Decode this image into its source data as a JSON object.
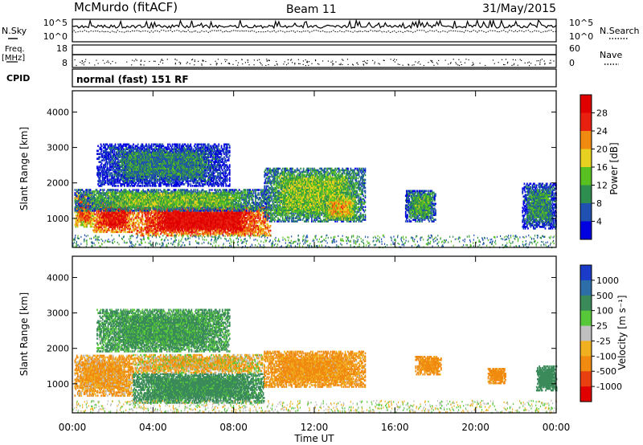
{
  "header": {
    "station": "McMurdo (fitACF)",
    "beam": "Beam 11",
    "date": "31/May/2015"
  },
  "top_panels": {
    "nsky_label": "N.Sky",
    "nsearch_label": "N.Search",
    "freq_label_line1": "Freq.",
    "freq_label_line2": "[MHz]",
    "nave_label": "Nave",
    "cpid_label": "CPID",
    "cpid_text": "normal (fast) 151 RF",
    "noise_left_ticks": [
      "10^5",
      "10^0"
    ],
    "noise_right_ticks": [
      "10^5",
      "10^0"
    ],
    "freq_ticks": [
      "18",
      "8"
    ],
    "nave_ticks": [
      "60",
      "0"
    ]
  },
  "chart_data": [
    {
      "type": "heatmap",
      "name": "power",
      "xlabel": "Time UT",
      "ylabel": "Slant Range [km]",
      "xlim": [
        0,
        24
      ],
      "ylim": [
        180,
        4600
      ],
      "yticks": [
        1000,
        2000,
        3000,
        4000
      ],
      "ytick_labels": [
        "1000",
        "2000",
        "3000",
        "4000"
      ],
      "colorbar": {
        "label": "Power [dB]",
        "tick_labels": [
          "4",
          "8",
          "12",
          "16",
          "20",
          "24",
          "28"
        ],
        "colors": [
          "#0000e0",
          "#2050b0",
          "#2e8e50",
          "#58c020",
          "#e8d020",
          "#f08a10",
          "#e82010",
          "#e00000"
        ]
      },
      "echo_regions": [
        {
          "t_start": 0.1,
          "t_end": 1.0,
          "r_start": 750,
          "r_end": 1700,
          "power_db": 24
        },
        {
          "t_start": 1.0,
          "t_end": 3.0,
          "r_start": 600,
          "r_end": 1500,
          "power_db": 28
        },
        {
          "t_start": 3.0,
          "t_end": 9.8,
          "r_start": 500,
          "r_end": 1350,
          "power_db": 29
        },
        {
          "t_start": 0.1,
          "t_end": 9.8,
          "r_start": 1200,
          "r_end": 1800,
          "power_db": 14
        },
        {
          "t_start": 1.2,
          "t_end": 7.8,
          "r_start": 1900,
          "r_end": 3100,
          "power_db": 9
        },
        {
          "t_start": 9.5,
          "t_end": 14.5,
          "r_start": 900,
          "r_end": 2400,
          "power_db": 15
        },
        {
          "t_start": 12.5,
          "t_end": 14.0,
          "r_start": 950,
          "r_end": 1600,
          "power_db": 20
        },
        {
          "t_start": 16.5,
          "t_end": 18.0,
          "r_start": 900,
          "r_end": 1800,
          "power_db": 12
        },
        {
          "t_start": 22.3,
          "t_end": 24.0,
          "r_start": 700,
          "r_end": 2000,
          "power_db": 10
        }
      ]
    },
    {
      "type": "heatmap",
      "name": "velocity",
      "xlabel": "Time UT",
      "ylabel": "Slant Range [km]",
      "xlim": [
        0,
        24
      ],
      "ylim": [
        180,
        4600
      ],
      "xticks": [
        0,
        4,
        8,
        12,
        16,
        20,
        24
      ],
      "xtick_labels": [
        "00:00",
        "04:00",
        "08:00",
        "12:00",
        "16:00",
        "20:00",
        "00:00"
      ],
      "yticks": [
        1000,
        2000,
        3000,
        4000
      ],
      "ytick_labels": [
        "1000",
        "2000",
        "3000",
        "4000"
      ],
      "colorbar": {
        "label": "Velocity [m s⁻¹]",
        "tick_labels": [
          "1000",
          "500",
          "100",
          "25",
          "-25",
          "-100",
          "-500",
          "-1000"
        ],
        "colors": [
          "#1a3cc8",
          "#2e6ea8",
          "#3a8a5a",
          "#56c83a",
          "#c0c0c0",
          "#f0b020",
          "#f08a10",
          "#e84010",
          "#e00000"
        ]
      },
      "echo_regions": [
        {
          "t_start": 0.1,
          "t_end": 3.0,
          "r_start": 650,
          "r_end": 1800,
          "velocity": -120
        },
        {
          "t_start": 3.0,
          "t_end": 9.5,
          "r_start": 450,
          "r_end": 1300,
          "velocity": 200
        },
        {
          "t_start": 3.0,
          "t_end": 9.5,
          "r_start": 1300,
          "r_end": 1800,
          "velocity": -60
        },
        {
          "t_start": 1.2,
          "t_end": 7.8,
          "r_start": 1900,
          "r_end": 3100,
          "velocity": 150
        },
        {
          "t_start": 9.5,
          "t_end": 14.5,
          "r_start": 900,
          "r_end": 1900,
          "velocity": -150
        },
        {
          "t_start": 17.0,
          "t_end": 18.3,
          "r_start": 1250,
          "r_end": 1750,
          "velocity": -200
        },
        {
          "t_start": 20.6,
          "t_end": 21.5,
          "r_start": 1000,
          "r_end": 1450,
          "velocity": -200
        },
        {
          "t_start": 23.0,
          "t_end": 24.0,
          "r_start": 800,
          "r_end": 1500,
          "velocity": 300
        }
      ]
    }
  ]
}
